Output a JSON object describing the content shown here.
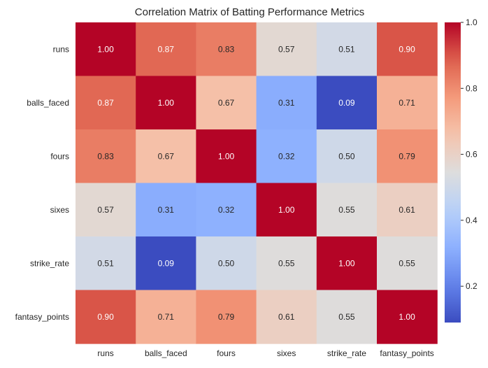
{
  "chart_data": {
    "type": "heatmap",
    "title": "Correlation Matrix of Batting Performance Metrics",
    "row_labels": [
      "runs",
      "balls_faced",
      "fours",
      "sixes",
      "strike_rate",
      "fantasy_points"
    ],
    "col_labels": [
      "runs",
      "balls_faced",
      "fours",
      "sixes",
      "strike_rate",
      "fantasy_points"
    ],
    "values": [
      [
        1.0,
        0.87,
        0.83,
        0.57,
        0.51,
        0.9
      ],
      [
        0.87,
        1.0,
        0.67,
        0.31,
        0.09,
        0.71
      ],
      [
        0.83,
        0.67,
        1.0,
        0.32,
        0.5,
        0.79
      ],
      [
        0.57,
        0.31,
        0.32,
        1.0,
        0.55,
        0.61
      ],
      [
        0.51,
        0.09,
        0.5,
        0.55,
        1.0,
        0.55
      ],
      [
        0.9,
        0.71,
        0.79,
        0.61,
        0.55,
        1.0
      ]
    ],
    "colormap": "coolwarm",
    "colorbar": {
      "min": 0.09,
      "max": 1.0,
      "ticks": [
        0.2,
        0.4,
        0.6,
        0.8,
        1.0
      ],
      "tick_labels": [
        "0.2",
        "0.4",
        "0.6",
        "0.8",
        "1.0"
      ]
    },
    "value_format": "2 decimals",
    "grid": false,
    "legend": "colorbar-right"
  }
}
